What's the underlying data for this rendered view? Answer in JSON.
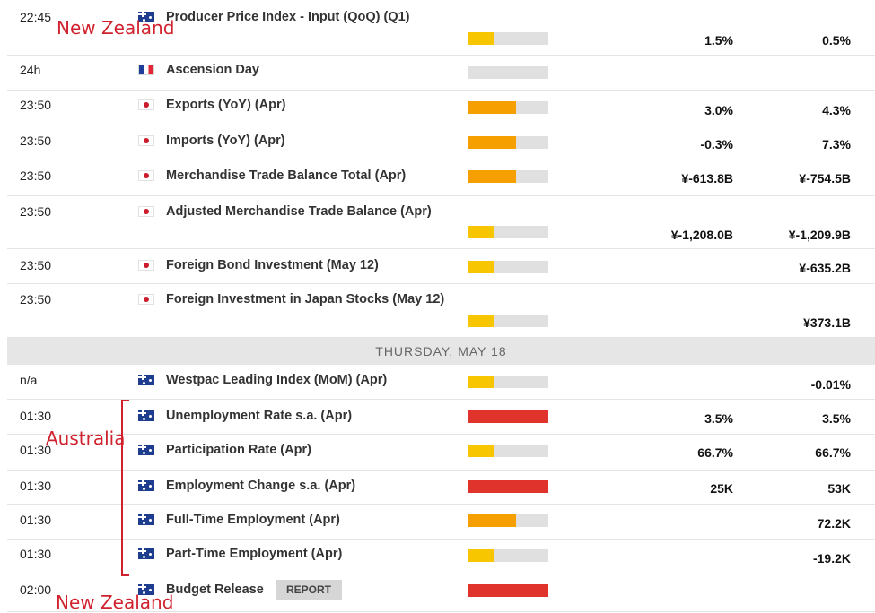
{
  "colors": {
    "low": "#f7c600",
    "medium": "#f5a000",
    "high": "#e0332b",
    "track": "#e0e0e0"
  },
  "day_header": "THURSDAY, MAY 18",
  "report_label": "REPORT",
  "annotations": {
    "top": "New Zealand",
    "middle": "Australia",
    "bottom": "New Zealand"
  },
  "rows": [
    {
      "time": "22:45",
      "flag": "au-flag-icon",
      "event": "Producer Price Index - Input (QoQ) (Q1)",
      "impact": "low",
      "impact_fraction": 0.33,
      "actual": "1.5%",
      "previous": "0.5%"
    },
    {
      "time": "24h",
      "flag": "fr-flag-icon",
      "event": "Ascension Day",
      "impact": "none",
      "impact_fraction": 0,
      "actual": "",
      "previous": ""
    },
    {
      "time": "23:50",
      "flag": "jp-flag-icon",
      "event": "Exports (YoY) (Apr)",
      "impact": "medium",
      "impact_fraction": 0.6,
      "actual": "3.0%",
      "previous": "4.3%"
    },
    {
      "time": "23:50",
      "flag": "jp-flag-icon",
      "event": "Imports (YoY) (Apr)",
      "impact": "medium",
      "impact_fraction": 0.6,
      "actual": "-0.3%",
      "previous": "7.3%"
    },
    {
      "time": "23:50",
      "flag": "jp-flag-icon",
      "event": "Merchandise Trade Balance Total (Apr)",
      "impact": "medium",
      "impact_fraction": 0.6,
      "actual": "¥-613.8B",
      "previous": "¥-754.5B"
    },
    {
      "time": "23:50",
      "flag": "jp-flag-icon",
      "event": "Adjusted Merchandise Trade Balance (Apr)",
      "impact": "low",
      "impact_fraction": 0.33,
      "actual": "¥-1,208.0B",
      "previous": "¥-1,209.9B"
    },
    {
      "time": "23:50",
      "flag": "jp-flag-icon",
      "event": "Foreign Bond Investment (May 12)",
      "impact": "low",
      "impact_fraction": 0.33,
      "actual": "",
      "previous": "¥-635.2B"
    },
    {
      "time": "23:50",
      "flag": "jp-flag-icon",
      "event": "Foreign Investment in Japan Stocks (May 12)",
      "impact": "low",
      "impact_fraction": 0.33,
      "actual": "",
      "previous": "¥373.1B"
    },
    {
      "time": "n/a",
      "flag": "au-flag-icon",
      "event": "Westpac Leading Index (MoM) (Apr)",
      "impact": "low",
      "impact_fraction": 0.33,
      "actual": "",
      "previous": "-0.01%"
    },
    {
      "time": "01:30",
      "flag": "au-flag-icon",
      "event": "Unemployment Rate s.a. (Apr)",
      "impact": "high",
      "impact_fraction": 1,
      "actual": "3.5%",
      "previous": "3.5%"
    },
    {
      "time": "01:30",
      "flag": "au-flag-icon",
      "event": "Participation Rate (Apr)",
      "impact": "low",
      "impact_fraction": 0.33,
      "actual": "66.7%",
      "previous": "66.7%"
    },
    {
      "time": "01:30",
      "flag": "au-flag-icon",
      "event": "Employment Change s.a. (Apr)",
      "impact": "high",
      "impact_fraction": 1,
      "actual": "25K",
      "previous": "53K"
    },
    {
      "time": "01:30",
      "flag": "au-flag-icon",
      "event": "Full-Time Employment (Apr)",
      "impact": "medium",
      "impact_fraction": 0.6,
      "actual": "",
      "previous": "72.2K"
    },
    {
      "time": "01:30",
      "flag": "au-flag-icon",
      "event": "Part-Time Employment (Apr)",
      "impact": "low",
      "impact_fraction": 0.33,
      "actual": "",
      "previous": "-19.2K"
    },
    {
      "time": "02:00",
      "flag": "nz-flag-icon",
      "event": "Budget Release",
      "impact": "high",
      "impact_fraction": 1,
      "actual": "",
      "previous": ""
    }
  ]
}
